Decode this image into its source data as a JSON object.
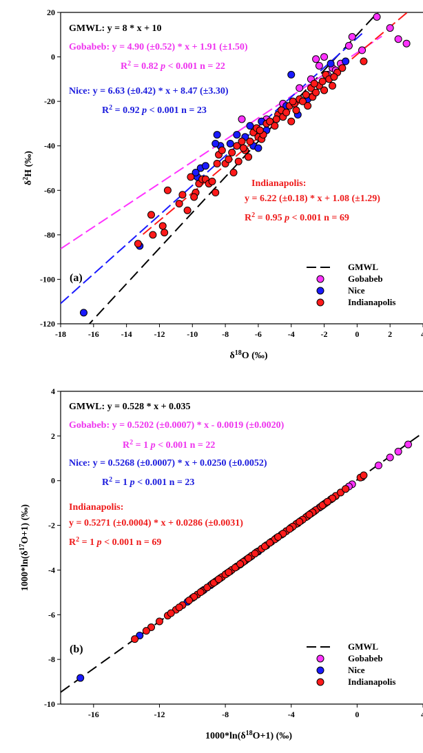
{
  "colors": {
    "gmwl": "#000000",
    "gobabeb": "#ff33ff",
    "nice": "#1a1aff",
    "indianapolis": "#ff1a1a",
    "gobabeb_text": "#ee33ee",
    "nice_text": "#1a1add",
    "indianapolis_text": "#ee1a1a"
  },
  "chart_data": [
    {
      "type": "scatter",
      "panel_label": "(a)",
      "xlabel": "δ18O (‰)",
      "ylabel": "δ2H (‰)",
      "xlim": [
        -18,
        4
      ],
      "ylim": [
        -120,
        20
      ],
      "xticks": [
        -18,
        -16,
        -14,
        -12,
        -10,
        -8,
        -6,
        -4,
        -2,
        0,
        2,
        4
      ],
      "yticks": [
        -120,
        -100,
        -80,
        -60,
        -40,
        -20,
        0,
        20
      ],
      "grid": false,
      "legend_position": "bottom-right",
      "annotations": {
        "gmwl": "GMWL: y = 8 * x + 10",
        "gobabeb_eq": "Gobabeb: y = 4.90 (±0.52) * x + 1.91 (±1.50)",
        "gobabeb_stats": "= 0.82  p < 0.001 n = 22",
        "nice_eq": "Nice: y = 6.63 (±0.42) * x + 8.47 (±3.30)",
        "nice_stats": "= 0.92  p < 0.001 n = 23",
        "indy_title": "Indianapolis:",
        "indy_eq": "y = 6.22 (±0.18) * x + 1.08 (±1.29)",
        "indy_stats": "= 0.95  p < 0.001 n = 69"
      },
      "lines": [
        {
          "name": "GMWL",
          "slope": 8,
          "intercept": 10,
          "x_range": [
            -16.5,
            1.7
          ]
        },
        {
          "name": "Gobabeb",
          "slope": 4.9,
          "intercept": 1.91,
          "x_range": [
            -18,
            1.5
          ]
        },
        {
          "name": "Nice",
          "slope": 6.63,
          "intercept": 8.47,
          "x_range": [
            -18,
            0.3
          ]
        },
        {
          "name": "Indianapolis",
          "slope": 6.22,
          "intercept": 1.08,
          "x_range": [
            -13,
            3.5
          ]
        }
      ],
      "series": [
        {
          "name": "Gobabeb",
          "points": [
            [
              -7.0,
              -28
            ],
            [
              -3.5,
              -14
            ],
            [
              -3.0,
              -18
            ],
            [
              -2.5,
              -1
            ],
            [
              -2.3,
              -4
            ],
            [
              -2.0,
              0
            ],
            [
              -1.8,
              -8
            ],
            [
              -1.5,
              -5
            ],
            [
              -1.3,
              -6
            ],
            [
              -0.3,
              9
            ],
            [
              0.3,
              3
            ],
            [
              1.2,
              18
            ],
            [
              2.0,
              13
            ],
            [
              2.5,
              8
            ],
            [
              3.0,
              6
            ],
            [
              -6.0,
              -33
            ],
            [
              -4.5,
              -21
            ],
            [
              -2.8,
              -10
            ],
            [
              -1.0,
              -3
            ],
            [
              -0.5,
              5
            ],
            [
              -2.0,
              -15
            ],
            [
              -5.5,
              -28
            ]
          ]
        },
        {
          "name": "Nice",
          "points": [
            [
              -16.6,
              -115
            ],
            [
              -13.2,
              -85
            ],
            [
              -9.7,
              -54
            ],
            [
              -9.5,
              -50
            ],
            [
              -9.2,
              -49
            ],
            [
              -8.5,
              -35
            ],
            [
              -8.3,
              -40
            ],
            [
              -7.7,
              -39
            ],
            [
              -7.3,
              -35
            ],
            [
              -6.8,
              -36
            ],
            [
              -6.3,
              -40
            ],
            [
              -6.0,
              -41
            ],
            [
              -5.5,
              -33
            ],
            [
              -4.0,
              -8
            ],
            [
              -3.6,
              -26
            ],
            [
              -3.0,
              -19
            ],
            [
              -1.6,
              -3
            ],
            [
              -0.7,
              -2
            ],
            [
              -6.5,
              -31
            ],
            [
              -8.6,
              -39
            ],
            [
              -4.3,
              -22
            ],
            [
              -9.8,
              -52
            ],
            [
              -5.8,
              -29
            ]
          ]
        },
        {
          "name": "Indianapolis",
          "points": [
            [
              -13.3,
              -84
            ],
            [
              -12.5,
              -71
            ],
            [
              -12.4,
              -80
            ],
            [
              -11.8,
              -76
            ],
            [
              -11.7,
              -79
            ],
            [
              -11.5,
              -60
            ],
            [
              -10.8,
              -66
            ],
            [
              -10.6,
              -62
            ],
            [
              -10.3,
              -69
            ],
            [
              -10.1,
              -54
            ],
            [
              -9.8,
              -61
            ],
            [
              -9.6,
              -57
            ],
            [
              -9.4,
              -55
            ],
            [
              -9.2,
              -55
            ],
            [
              -9.0,
              -57
            ],
            [
              -8.8,
              -56
            ],
            [
              -8.6,
              -61
            ],
            [
              -8.4,
              -44
            ],
            [
              -8.2,
              -42
            ],
            [
              -8.0,
              -48
            ],
            [
              -7.8,
              -46
            ],
            [
              -7.5,
              -52
            ],
            [
              -7.3,
              -40
            ],
            [
              -7.2,
              -47
            ],
            [
              -7.0,
              -38
            ],
            [
              -6.8,
              -42
            ],
            [
              -6.6,
              -45
            ],
            [
              -6.5,
              -38
            ],
            [
              -6.3,
              -34
            ],
            [
              -6.1,
              -32
            ],
            [
              -6.0,
              -36
            ],
            [
              -5.8,
              -37
            ],
            [
              -5.7,
              -35
            ],
            [
              -5.5,
              -30
            ],
            [
              -5.3,
              -29
            ],
            [
              -5.0,
              -31
            ],
            [
              -4.8,
              -26
            ],
            [
              -4.6,
              -24
            ],
            [
              -4.5,
              -27
            ],
            [
              -4.3,
              -25
            ],
            [
              -4.1,
              -22
            ],
            [
              -4.0,
              -29
            ],
            [
              -3.8,
              -21
            ],
            [
              -3.7,
              -24
            ],
            [
              -3.5,
              -19
            ],
            [
              -3.3,
              -20
            ],
            [
              -3.1,
              -17
            ],
            [
              -3.0,
              -22
            ],
            [
              -2.8,
              -14
            ],
            [
              -2.7,
              -18
            ],
            [
              -2.5,
              -16
            ],
            [
              -2.3,
              -13
            ],
            [
              -2.1,
              -11
            ],
            [
              -2.0,
              -15
            ],
            [
              -1.9,
              -8
            ],
            [
              -1.7,
              -10
            ],
            [
              -1.5,
              -13
            ],
            [
              -1.2,
              -7
            ],
            [
              -0.9,
              -5
            ],
            [
              0.4,
              -2
            ],
            [
              -8.5,
              -48
            ],
            [
              -7.6,
              -43
            ],
            [
              -6.9,
              -41
            ],
            [
              -4.9,
              -28
            ],
            [
              -3.9,
              -20
            ],
            [
              -2.6,
              -12
            ],
            [
              -1.4,
              -9
            ],
            [
              -5.9,
              -33
            ],
            [
              -9.9,
              -63
            ]
          ]
        }
      ],
      "legend": [
        "GMWL",
        "Gobabeb",
        "Nice",
        "Indianapolis"
      ]
    },
    {
      "type": "scatter",
      "panel_label": "(b)",
      "xlabel": "1000*ln(δ18O+1) (‰)",
      "ylabel": "1000*ln(δ17O+1) (‰)",
      "xlim": [
        -18,
        4
      ],
      "ylim": [
        -10,
        4
      ],
      "xticks": [
        -16,
        -12,
        -8,
        -4,
        0,
        4
      ],
      "yticks": [
        -10,
        -8,
        -6,
        -4,
        -2,
        0,
        2,
        4
      ],
      "grid": false,
      "legend_position": "bottom-right",
      "annotations": {
        "gmwl": "GMWL: y = 0.528 * x + 0.035",
        "gobabeb_eq": "Gobabeb: y = 0.5202 (±0.0007) * x - 0.0019 (±0.0020)",
        "gobabeb_stats": "= 1  p < 0.001 n = 22",
        "nice_eq": "Nice: y = 0.5268 (±0.0007) * x + 0.0250 (±0.0052)",
        "nice_stats": "= 1  p < 0.001 n = 23",
        "indy_title": "Indianapolis:",
        "indy_eq": "y = 0.5271 (±0.0004) * x + 0.0286 (±0.0031)",
        "indy_stats": "= 1  p < 0.001 n = 69"
      },
      "lines": [
        {
          "name": "GMWL",
          "slope": 0.528,
          "intercept": 0.035,
          "x_range": [
            -18,
            4
          ]
        }
      ],
      "series": [
        {
          "name": "Gobabeb",
          "points": [
            [
              -7.1,
              -3.75
            ],
            [
              -3.6,
              -1.9
            ],
            [
              -3.0,
              -1.58
            ],
            [
              -2.6,
              -1.37
            ],
            [
              -2.3,
              -1.21
            ],
            [
              -2.0,
              -1.05
            ],
            [
              -1.8,
              -0.95
            ],
            [
              -1.5,
              -0.79
            ],
            [
              -1.3,
              -0.69
            ],
            [
              -0.3,
              -0.16
            ],
            [
              0.3,
              0.16
            ],
            [
              1.3,
              0.68
            ],
            [
              2.0,
              1.04
            ],
            [
              2.5,
              1.3
            ],
            [
              3.1,
              1.62
            ],
            [
              -6.0,
              -3.17
            ],
            [
              -4.5,
              -2.37
            ],
            [
              -2.8,
              -1.47
            ],
            [
              -1.0,
              -0.53
            ],
            [
              -0.5,
              -0.26
            ],
            [
              -2.1,
              -1.11
            ],
            [
              -5.5,
              -2.9
            ]
          ]
        },
        {
          "name": "Nice",
          "points": [
            [
              -16.8,
              -8.83
            ],
            [
              -13.2,
              -6.93
            ],
            [
              -10.3,
              -5.42
            ],
            [
              -9.7,
              -5.1
            ],
            [
              -9.3,
              -4.89
            ],
            [
              -8.6,
              -4.52
            ],
            [
              -8.3,
              -4.36
            ],
            [
              -7.7,
              -4.05
            ],
            [
              -7.3,
              -3.84
            ],
            [
              -6.8,
              -3.58
            ],
            [
              -6.4,
              -3.37
            ],
            [
              -6.0,
              -3.16
            ],
            [
              -5.5,
              -2.9
            ],
            [
              -4.0,
              -2.1
            ],
            [
              -3.6,
              -1.9
            ],
            [
              -3.0,
              -1.58
            ],
            [
              -1.6,
              -0.84
            ],
            [
              -0.7,
              -0.37
            ],
            [
              -6.5,
              -3.42
            ],
            [
              -8.9,
              -4.68
            ],
            [
              -4.3,
              -2.26
            ],
            [
              -9.9,
              -5.2
            ],
            [
              -5.8,
              -3.05
            ]
          ]
        },
        {
          "name": "Indianapolis",
          "points": [
            [
              -13.5,
              -7.09
            ],
            [
              -12.5,
              -6.56
            ],
            [
              -12.0,
              -6.3
            ],
            [
              -11.5,
              -6.04
            ],
            [
              -11.0,
              -5.78
            ],
            [
              -10.6,
              -5.57
            ],
            [
              -10.0,
              -5.25
            ],
            [
              -9.7,
              -5.1
            ],
            [
              -9.4,
              -4.94
            ],
            [
              -9.1,
              -4.78
            ],
            [
              -8.8,
              -4.62
            ],
            [
              -8.5,
              -4.47
            ],
            [
              -8.2,
              -4.31
            ],
            [
              -7.9,
              -4.15
            ],
            [
              -7.6,
              -3.99
            ],
            [
              -7.3,
              -3.84
            ],
            [
              -7.0,
              -3.68
            ],
            [
              -6.7,
              -3.52
            ],
            [
              -6.4,
              -3.36
            ],
            [
              -6.1,
              -3.2
            ],
            [
              -5.8,
              -3.05
            ],
            [
              -5.5,
              -2.89
            ],
            [
              -5.2,
              -2.73
            ],
            [
              -4.9,
              -2.57
            ],
            [
              -4.6,
              -2.42
            ],
            [
              -4.3,
              -2.26
            ],
            [
              -4.0,
              -2.1
            ],
            [
              -3.7,
              -1.94
            ],
            [
              -3.4,
              -1.79
            ],
            [
              -3.1,
              -1.63
            ],
            [
              -2.8,
              -1.47
            ],
            [
              -2.5,
              -1.31
            ],
            [
              -2.2,
              -1.16
            ],
            [
              -1.9,
              -1.0
            ],
            [
              -1.6,
              -0.84
            ],
            [
              -1.3,
              -0.68
            ],
            [
              -1.0,
              -0.53
            ],
            [
              -0.7,
              -0.37
            ],
            [
              0.2,
              0.14
            ],
            [
              0.4,
              0.24
            ],
            [
              -10.8,
              -5.67
            ],
            [
              -9.9,
              -5.2
            ],
            [
              -8.7,
              -4.57
            ],
            [
              -8.0,
              -4.2
            ],
            [
              -7.4,
              -3.89
            ],
            [
              -6.9,
              -3.63
            ],
            [
              -6.2,
              -3.26
            ],
            [
              -5.6,
              -2.94
            ],
            [
              -5.0,
              -2.63
            ],
            [
              -4.5,
              -2.37
            ],
            [
              -3.9,
              -2.05
            ],
            [
              -3.3,
              -1.74
            ],
            [
              -2.7,
              -1.42
            ],
            [
              -2.1,
              -1.1
            ],
            [
              -1.5,
              -0.79
            ],
            [
              -9.5,
              -4.99
            ],
            [
              -7.8,
              -4.1
            ],
            [
              -6.6,
              -3.47
            ],
            [
              -5.3,
              -2.78
            ],
            [
              -4.1,
              -2.16
            ],
            [
              -2.9,
              -1.52
            ],
            [
              -1.8,
              -0.94
            ],
            [
              -12.8,
              -6.72
            ],
            [
              -11.3,
              -5.93
            ],
            [
              -10.2,
              -5.36
            ],
            [
              -8.4,
              -4.41
            ],
            [
              -7.1,
              -3.73
            ],
            [
              -4.8,
              -2.52
            ],
            [
              -3.5,
              -1.84
            ]
          ]
        }
      ],
      "legend": [
        "GMWL",
        "Gobabeb",
        "Nice",
        "Indianapolis"
      ]
    }
  ]
}
